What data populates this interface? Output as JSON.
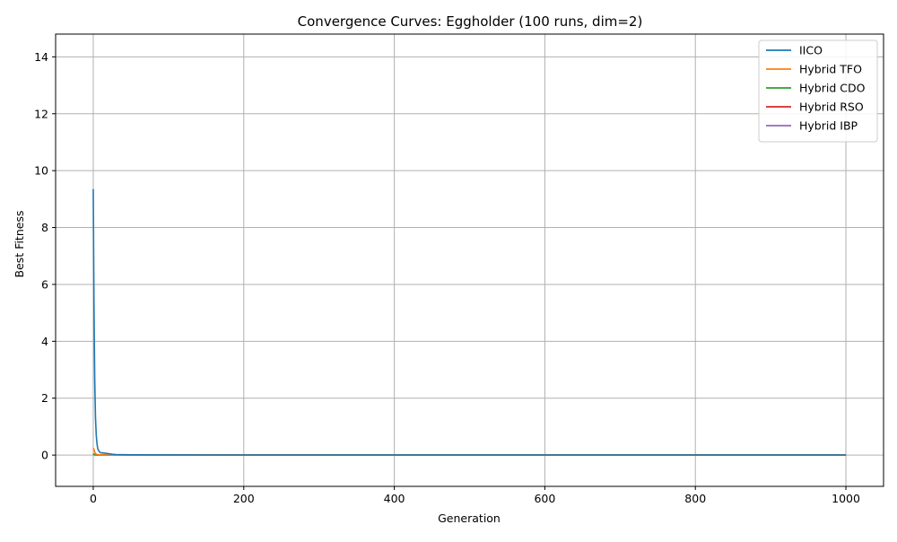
{
  "chart_data": {
    "type": "line",
    "title": "Convergence Curves: Eggholder (100 runs, dim=2)",
    "xlabel": "Generation",
    "ylabel": "Best Fitness",
    "xlim": [
      -50,
      1050
    ],
    "ylim": [
      -1.1,
      14.8
    ],
    "xticks": [
      0,
      200,
      400,
      600,
      800,
      1000
    ],
    "yticks": [
      0,
      2,
      4,
      6,
      8,
      10,
      12,
      14
    ],
    "grid": true,
    "legend_position": "top-right",
    "series": [
      {
        "name": "IICO",
        "color": "#1f77b4",
        "x": [
          0,
          1,
          2,
          3,
          4,
          5,
          6,
          8,
          10,
          15,
          20,
          25,
          30,
          50,
          100,
          200,
          400,
          600,
          800,
          1000
        ],
        "y": [
          9.35,
          5.2,
          2.6,
          1.3,
          0.7,
          0.4,
          0.22,
          0.12,
          0.08,
          0.07,
          0.05,
          0.03,
          0.02,
          0.01,
          0.005,
          0.003,
          0.002,
          0.002,
          0.002,
          0.002
        ]
      },
      {
        "name": "Hybrid TFO",
        "color": "#ff7f0e",
        "x": [
          0,
          1,
          2,
          3,
          5,
          10,
          50,
          1000
        ],
        "y": [
          0.25,
          0.2,
          0.1,
          0.05,
          0.02,
          0.01,
          0.005,
          0.002
        ]
      },
      {
        "name": "Hybrid CDO",
        "color": "#2ca02c",
        "x": [
          0,
          1,
          2,
          5,
          1000
        ],
        "y": [
          0.05,
          0.03,
          0.01,
          0.005,
          0.002
        ]
      },
      {
        "name": "Hybrid RSO",
        "color": "#d62728",
        "x": [
          0,
          1,
          2,
          5,
          1000
        ],
        "y": [
          0.04,
          0.02,
          0.01,
          0.005,
          0.002
        ]
      },
      {
        "name": "Hybrid IBP",
        "color": "#9467bd",
        "x": [
          0,
          1,
          2,
          5,
          1000
        ],
        "y": [
          0.03,
          0.015,
          0.008,
          0.004,
          0.002
        ]
      }
    ]
  }
}
